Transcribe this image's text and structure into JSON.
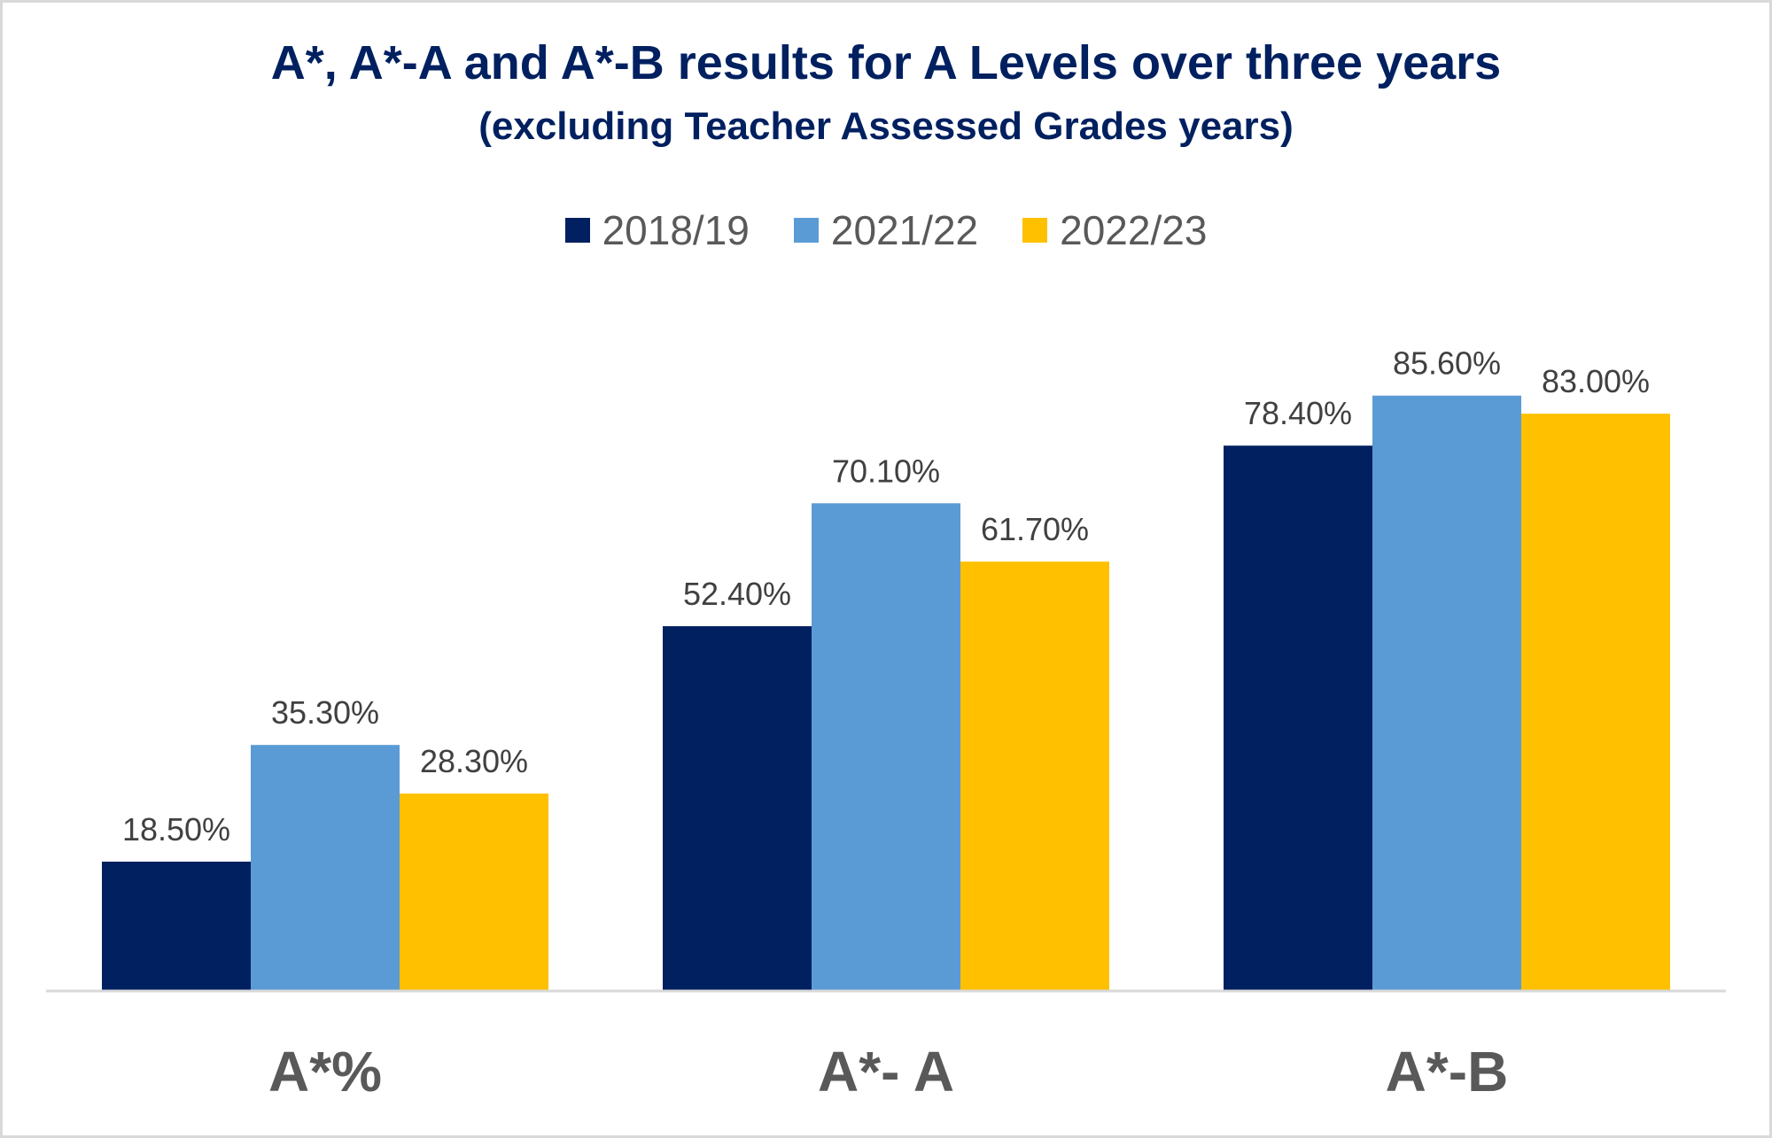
{
  "chart_data": {
    "type": "bar",
    "title": "A*, A*-A and A*-B results for A Levels over three years",
    "subtitle": "(excluding Teacher Assessed Grades years)",
    "categories": [
      "A*%",
      "A*- A",
      "A*-B"
    ],
    "series": [
      {
        "name": "2018/19",
        "color": "#002060",
        "values": [
          18.5,
          52.4,
          78.4
        ],
        "labels": [
          "18.50%",
          "52.40%",
          "78.40%"
        ]
      },
      {
        "name": "2021/22",
        "color": "#5b9bd5",
        "values": [
          35.3,
          70.1,
          85.6
        ],
        "labels": [
          "35.30%",
          "70.10%",
          "85.60%"
        ]
      },
      {
        "name": "2022/23",
        "color": "#ffc000",
        "values": [
          28.3,
          61.7,
          83.0
        ],
        "labels": [
          "28.30%",
          "61.70%",
          "83.00%"
        ]
      }
    ],
    "xlabel": "",
    "ylabel": "",
    "ylim": [
      0,
      100
    ],
    "grid": false,
    "legend_position": "top"
  }
}
